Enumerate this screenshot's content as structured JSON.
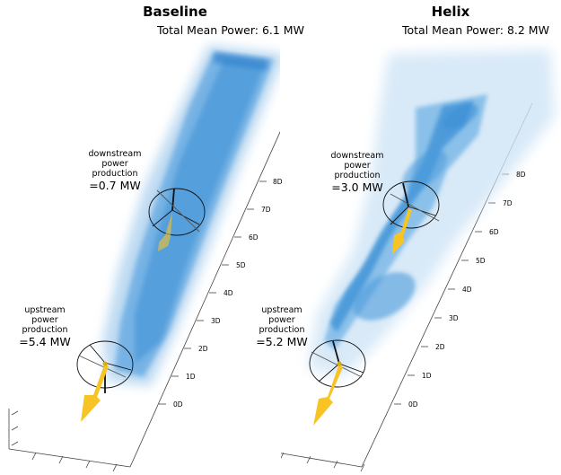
{
  "panels": [
    {
      "title": "Baseline",
      "subtitle": "Total Mean Power: 6.1 MW",
      "downstream": {
        "line1": "downstream",
        "line2": "power",
        "line3": "production",
        "value": "=0.7 MW"
      },
      "upstream": {
        "line1": "upstream",
        "line2": "power",
        "line3": "production",
        "value": "=5.4 MW"
      },
      "axis_ticks": [
        "0D",
        "1D",
        "2D",
        "3D",
        "4D",
        "5D",
        "6D",
        "7D",
        "8D"
      ]
    },
    {
      "title": "Helix",
      "subtitle": "Total Mean Power: 8.2 MW",
      "downstream": {
        "line1": "downstream",
        "line2": "power",
        "line3": "production",
        "value": "=3.0 MW"
      },
      "upstream": {
        "line1": "upstream",
        "line2": "power",
        "line3": "production",
        "value": "=5.2 MW"
      },
      "axis_ticks": [
        "0D",
        "1D",
        "2D",
        "3D",
        "4D",
        "5D",
        "6D",
        "7D",
        "8D"
      ]
    }
  ],
  "colors": {
    "wake": "#3a8fd6",
    "wake_light": "#a9cfee",
    "arrow": "#f7c325",
    "axis": "#444444"
  }
}
